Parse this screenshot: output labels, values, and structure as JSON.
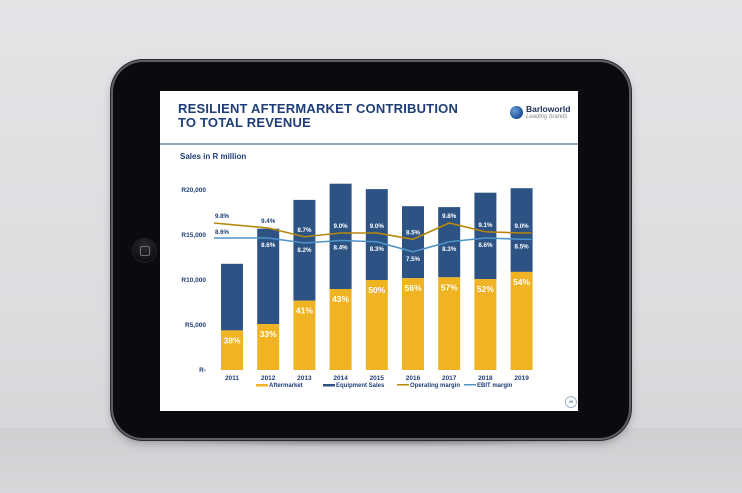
{
  "slide": {
    "title_line1": "RESILIENT AFTERMARKET CONTRIBUTION",
    "title_line2": "TO TOTAL REVENUE",
    "subtitle": "Sales in R million",
    "logo_name": "Barloworld",
    "logo_tagline": "Leading brands",
    "page_number": "45"
  },
  "colors": {
    "aftermarket": "#f0b323",
    "equipment": "#2d5385",
    "operating_margin": "#b8860b",
    "ebit_margin": "#4f94c7",
    "title": "#1f3e78"
  },
  "chart_data": {
    "type": "bar",
    "stacked": true,
    "title": "Sales in R million",
    "categories": [
      "2011",
      "2012",
      "2013",
      "2014",
      "2015",
      "2016",
      "2017",
      "2018",
      "2019"
    ],
    "ylim": [
      0,
      20000
    ],
    "yticks": [
      0,
      5000,
      10000,
      15000,
      20000
    ],
    "ytick_labels": [
      "R-",
      "R5,000",
      "R10,000",
      "R15,000",
      "R20,000"
    ],
    "grid": false,
    "legend_position": "bottom",
    "series": [
      {
        "name": "Aftermarket",
        "values": [
          4400,
          5100,
          7700,
          9000,
          10000,
          10200,
          10300,
          10100,
          10900
        ],
        "labels": [
          "38%",
          "33%",
          "41%",
          "43%",
          "50%",
          "56%",
          "57%",
          "52%",
          "54%"
        ]
      },
      {
        "name": "Equipment Sales",
        "values": [
          7400,
          10600,
          11200,
          11700,
          10100,
          8000,
          7800,
          9600,
          9300
        ]
      }
    ],
    "lines": [
      {
        "name": "Operating margin",
        "values": [
          9.8,
          9.4,
          8.7,
          9.0,
          9.0,
          8.5,
          9.8,
          9.1,
          9.0
        ],
        "labels": [
          "9.8%",
          "9.4%",
          "8.7%",
          "9.0%",
          "9.0%",
          "8.5%",
          "9.8%",
          "9.1%",
          "9.0%"
        ]
      },
      {
        "name": "EBIT margin",
        "values": [
          8.6,
          8.6,
          8.2,
          8.4,
          8.3,
          7.5,
          8.3,
          8.6,
          8.5
        ],
        "labels": [
          "8.6%",
          "8.6%",
          "8.2%",
          "8.4%",
          "8.3%",
          "7.5%",
          "8.3%",
          "8.6%",
          "8.5%"
        ]
      }
    ],
    "legend": [
      "Aftermarket",
      "Equipment Sales",
      "Operating margin",
      "EBIT margin"
    ]
  }
}
